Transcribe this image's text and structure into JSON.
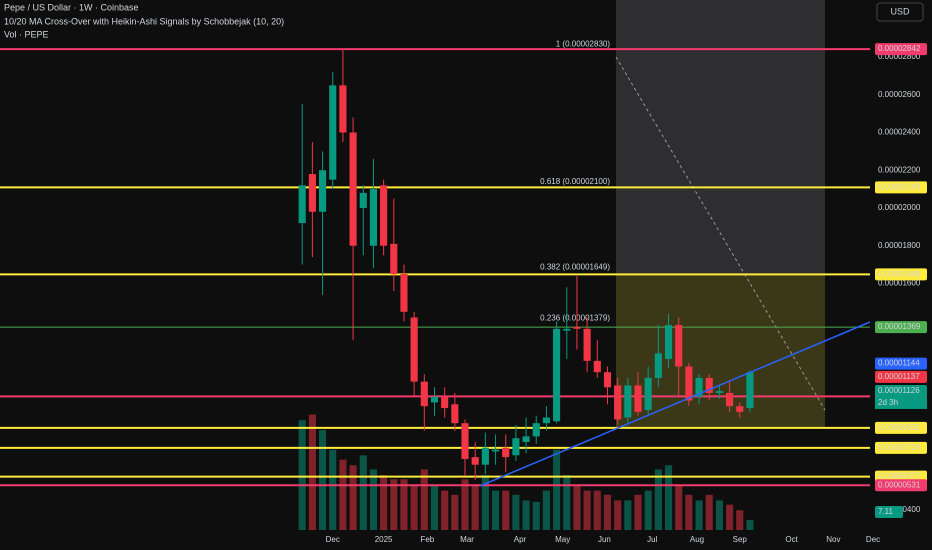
{
  "chart_data": {
    "type": "candlestick",
    "title": "Pepe / US Dollar · 1W · Coinbase",
    "subtitle": "10/20 MA Cross-Over with Heikin-Ashi Signals by Schobbejak (10, 20)",
    "volume_title": "Vol · PEPE",
    "currency": "USD",
    "up_color": "#089981",
    "down_color": "#f23645",
    "categories": [
      null,
      null,
      null,
      null,
      null,
      null,
      null,
      null,
      null,
      null,
      null,
      null,
      null,
      null,
      null,
      null,
      null,
      null,
      null,
      null,
      null,
      null,
      null,
      null,
      null,
      null,
      null,
      null,
      null,
      null,
      null,
      null,
      null,
      null,
      null,
      null,
      null,
      null,
      null,
      null,
      null,
      null,
      null,
      null,
      null
    ],
    "open": [
      1.92e-05,
      2.18e-05,
      1.98e-05,
      2.15e-05,
      2.65e-05,
      2.4e-05,
      2e-05,
      1.8e-05,
      2.12e-05,
      1.81e-05,
      1.65e-05,
      1.42e-05,
      1.08e-05,
      9.7e-06,
      1e-05,
      9.6e-06,
      8.6e-06,
      6.8e-06,
      6.4e-06,
      7.1e-06,
      7.3e-06,
      6.9e-06,
      7.6e-06,
      7.9e-06,
      8.6e-06,
      8.7e-06,
      1.35e-05,
      1.37e-05,
      1.36e-05,
      1.19e-05,
      1.13e-05,
      1.06e-05,
      8.9e-06,
      1.06e-05,
      9.3e-06,
      1.1e-05,
      1.2e-05,
      1.38e-05,
      1.16e-05,
      1e-05,
      1.1e-05,
      1.02e-05,
      1.02e-05,
      9.5e-06,
      9.4e-06
    ],
    "high": [
      2.55e-05,
      2.35e-05,
      2.3e-05,
      2.72e-05,
      2.84e-05,
      2.48e-05,
      2.12e-05,
      2.26e-05,
      2.15e-05,
      2.05e-05,
      1.7e-05,
      1.45e-05,
      1.12e-05,
      1.05e-05,
      1.05e-05,
      1.02e-05,
      8.8e-06,
      7.6e-06,
      8.1e-06,
      8e-06,
      8e-06,
      8.5e-06,
      8.9e-06,
      9e-06,
      9.5e-06,
      1.4e-05,
      1.58e-05,
      1.64e-05,
      1.42e-05,
      1.3e-05,
      1.16e-05,
      1.1e-05,
      1.1e-05,
      1.13e-05,
      1.16e-05,
      1.38e-05,
      1.44e-05,
      1.42e-05,
      1.18e-05,
      1.12e-05,
      1.12e-05,
      1.06e-05,
      1.09e-05,
      9.7e-06,
      1.14e-05
    ],
    "low": [
      1.7e-05,
      1.74e-05,
      1.54e-05,
      2.1e-05,
      2.35e-05,
      1.3e-05,
      1.75e-05,
      1.68e-05,
      1.75e-05,
      1.56e-05,
      1.4e-05,
      1e-05,
      8.2e-06,
      9e-06,
      8.9e-06,
      8.2e-06,
      5.8e-06,
      5.6e-06,
      5.9e-06,
      6.4e-06,
      6e-06,
      6.6e-06,
      7e-06,
      7.5e-06,
      8.2e-06,
      8.6e-06,
      1.2e-05,
      1.25e-05,
      1.13e-05,
      1.1e-05,
      9.6e-06,
      8.5e-06,
      8.6e-06,
      9e-06,
      9e-06,
      1.05e-05,
      1.15e-05,
      1e-05,
      9.5e-06,
      9.6e-06,
      9.8e-06,
      9.9e-06,
      9.2e-06,
      8.9e-06,
      9.2e-06
    ],
    "close": [
      2.12e-05,
      1.98e-05,
      2.2e-05,
      2.65e-05,
      2.4e-05,
      1.8e-05,
      2.08e-05,
      2.1e-05,
      1.8e-05,
      1.65e-05,
      1.45e-05,
      1.08e-05,
      9.5e-06,
      1e-05,
      9.4e-06,
      8.6e-06,
      6.7e-06,
      6.4e-06,
      7.3e-06,
      7.2e-06,
      6.8e-06,
      7.8e-06,
      7.9e-06,
      8.6e-06,
      8.9e-06,
      1.36e-05,
      1.36e-05,
      1.36e-05,
      1.19e-05,
      1.13e-05,
      1.05e-05,
      8.8e-06,
      1.06e-05,
      9.2e-06,
      1.1e-05,
      1.23e-05,
      1.38e-05,
      1.16e-05,
      9.8e-06,
      1.1e-05,
      1.02e-05,
      1.03e-05,
      9.5e-06,
      9.2e-06,
      1.13e-05
    ],
    "volume": [
      78,
      82,
      71,
      57,
      50,
      46,
      53,
      43,
      39,
      36,
      36,
      32,
      43,
      32,
      28,
      25,
      36,
      32,
      39,
      28,
      28,
      25,
      21,
      20,
      28,
      57,
      39,
      32,
      28,
      28,
      25,
      21,
      21,
      25,
      28,
      43,
      46,
      32,
      25,
      21,
      25,
      21,
      18,
      14,
      7.11
    ],
    "vlim": [
      0,
      142
    ],
    "xlim": [
      -29.7,
      55.8
    ],
    "xticks": [
      {
        "value": 3,
        "label": "Dec"
      },
      {
        "value": 8,
        "label": "2025"
      },
      {
        "value": 12.3,
        "label": "Feb"
      },
      {
        "value": 16.2,
        "label": "Mar"
      },
      {
        "value": 21.4,
        "label": "Apr"
      },
      {
        "value": 25.6,
        "label": "May"
      },
      {
        "value": 29.7,
        "label": "Jun"
      },
      {
        "value": 34.4,
        "label": "Jul"
      },
      {
        "value": 38.8,
        "label": "Aug"
      },
      {
        "value": 43,
        "label": "Sep"
      },
      {
        "value": 48.1,
        "label": "Oct"
      },
      {
        "value": 52.2,
        "label": "Nov"
      },
      {
        "value": 56.1,
        "label": "Dec"
      }
    ],
    "ylim": [
      2.94e-06,
      3.102e-05
    ],
    "yticks": [
      {
        "value": 2.8e-05,
        "label": "0.00002800"
      },
      {
        "value": 2.6e-05,
        "label": "0.00002600"
      },
      {
        "value": 2.4e-05,
        "label": "0.00002400"
      },
      {
        "value": 2.2e-05,
        "label": "0.00002200"
      },
      {
        "value": 2e-05,
        "label": "0.00002000"
      },
      {
        "value": 1.8e-05,
        "label": "0.00001800"
      },
      {
        "value": 1.6e-05,
        "label": "0.00001600"
      },
      {
        "value": 4e-06,
        "label": "0.00000400"
      }
    ],
    "levels": [
      {
        "value": 2.842e-05,
        "label": "0.00002842",
        "color": "#f23b6c"
      },
      {
        "value": 2.109e-05,
        "label": "0.00002109",
        "color": "#ffeb3b"
      },
      {
        "value": 1.648e-05,
        "label": "0.00001648",
        "color": "#ffeb3b"
      },
      {
        "value": 1.369e-05,
        "label": "0.00001369",
        "color": "#4caf50"
      },
      {
        "value": 1.002e-05,
        "label": "0.00001002",
        "color": "#f23b6c"
      },
      {
        "value": 8.35e-06,
        "label": "0.00000835",
        "color": "#ffeb3b"
      },
      {
        "value": 7.29e-06,
        "label": "0.00000729",
        "color": "#ffeb3b"
      },
      {
        "value": 5.77e-06,
        "label": "0.00000577",
        "color": "#ffeb3b"
      },
      {
        "value": 5.31e-06,
        "label": "0.00000531",
        "color": "#f23b6c"
      }
    ],
    "price_badges": [
      {
        "value": 1.144e-05,
        "label": "0.00001144",
        "color": "#2962ff"
      },
      {
        "value": 1.137e-05,
        "label": "0.00001137",
        "color": "#f23645"
      },
      {
        "value": 1.126e-05,
        "label": "0.00001126",
        "color": "#089981"
      }
    ],
    "countdown": "2d 3h",
    "fib_labels": [
      {
        "value": 2.83e-05,
        "label": "1 (0.00002830)",
        "color": "#5b8def"
      },
      {
        "value": 2.1e-05,
        "label": "0.618 (0.00002100)",
        "color": "#66bb6a"
      },
      {
        "value": 1.649e-05,
        "label": "0.382 (0.00001649)",
        "color": "#ffeb3b"
      },
      {
        "value": 1.379e-05,
        "label": "0.236 (0.00001379)",
        "color": "#c2185b"
      }
    ]
  }
}
